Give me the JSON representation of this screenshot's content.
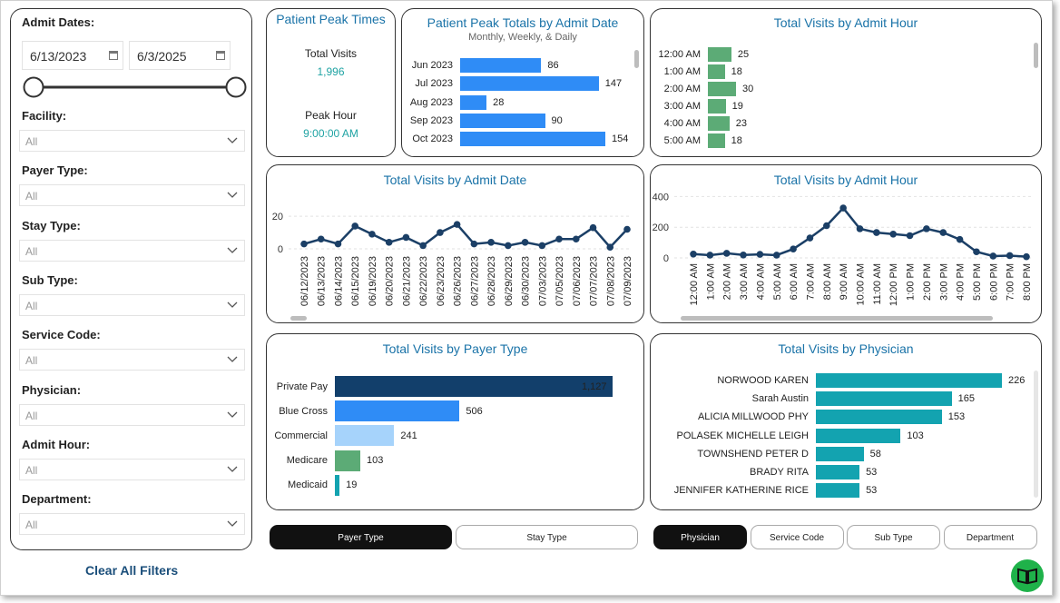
{
  "filters": {
    "admit_dates_label": "Admit Dates:",
    "start_date": "6/13/2023",
    "end_date": "6/3/2025",
    "items": [
      {
        "label": "Facility:",
        "value": "All"
      },
      {
        "label": "Payer Type:",
        "value": "All"
      },
      {
        "label": "Stay Type:",
        "value": "All"
      },
      {
        "label": "Sub Type:",
        "value": "All"
      },
      {
        "label": "Service Code:",
        "value": "All"
      },
      {
        "label": "Physician:",
        "value": "All"
      },
      {
        "label": "Admit Hour:",
        "value": "All"
      },
      {
        "label": "Department:",
        "value": "All"
      }
    ],
    "clear_label": "Clear All Filters"
  },
  "peak": {
    "title": "Patient Peak Times",
    "visits_label": "Total Visits",
    "visits_value": "1,996",
    "hour_label": "Peak Hour",
    "hour_value": "9:00:00 AM"
  },
  "peak_totals": {
    "title": "Patient Peak Totals by Admit Date",
    "subtitle": "Monthly, Weekly, & Daily",
    "rows": [
      {
        "label": "Jun 2023",
        "value": 86
      },
      {
        "label": "Jul 2023",
        "value": 147
      },
      {
        "label": "Aug 2023",
        "value": 28
      },
      {
        "label": "Sep 2023",
        "value": 90
      },
      {
        "label": "Oct 2023",
        "value": 154
      }
    ],
    "max": 154,
    "color": "#2f8cf6"
  },
  "visits_hour_bars": {
    "title": "Total Visits by Admit Hour",
    "rows": [
      {
        "label": "12:00 AM",
        "value": 25
      },
      {
        "label": "1:00 AM",
        "value": 18
      },
      {
        "label": "2:00 AM",
        "value": 30
      },
      {
        "label": "3:00 AM",
        "value": 19
      },
      {
        "label": "4:00 AM",
        "value": 23
      },
      {
        "label": "5:00 AM",
        "value": 18
      }
    ],
    "max": 30,
    "color": "#5cab76"
  },
  "visits_date_line": {
    "title": "Total Visits by Admit Date",
    "chart_data": {
      "type": "line",
      "x": [
        "06/12/2023",
        "06/13/2023",
        "06/14/2023",
        "06/15/2023",
        "06/19/2023",
        "06/20/2023",
        "06/21/2023",
        "06/22/2023",
        "06/23/2023",
        "06/26/2023",
        "06/27/2023",
        "06/28/2023",
        "06/29/2023",
        "06/30/2023",
        "07/03/2023",
        "07/05/2023",
        "07/06/2023",
        "07/07/2023",
        "07/08/2023",
        "07/09/2023"
      ],
      "y": [
        3,
        6,
        3,
        14,
        9,
        4,
        7,
        2,
        10,
        15,
        3,
        4,
        2,
        4,
        2,
        6,
        6,
        13,
        1,
        12
      ],
      "yticks": [
        0,
        20
      ],
      "ylim": [
        0,
        24
      ]
    }
  },
  "visits_hour_line": {
    "title": "Total Visits by Admit Hour",
    "chart_data": {
      "type": "line",
      "x": [
        "12:00 AM",
        "1:00 AM",
        "2:00 AM",
        "3:00 AM",
        "4:00 AM",
        "5:00 AM",
        "6:00 AM",
        "7:00 AM",
        "8:00 AM",
        "9:00 AM",
        "10:00 AM",
        "11:00 AM",
        "12:00 PM",
        "1:00 PM",
        "2:00 PM",
        "3:00 PM",
        "4:00 PM",
        "5:00 PM",
        "6:00 PM",
        "7:00 PM",
        "8:00 PM"
      ],
      "y": [
        25,
        18,
        30,
        19,
        23,
        18,
        58,
        130,
        210,
        325,
        190,
        165,
        155,
        145,
        190,
        165,
        120,
        40,
        12,
        15,
        8
      ],
      "yticks": [
        0,
        200,
        400
      ],
      "ylim": [
        0,
        420
      ]
    }
  },
  "payer": {
    "title": "Total Visits by Payer Type",
    "chart_data": {
      "type": "bar",
      "categories": [
        "Private Pay",
        "Blue Cross",
        "Commercial",
        "Medicare",
        "Medicaid"
      ],
      "values": [
        1127,
        506,
        241,
        103,
        19
      ],
      "value_labels": [
        "1,127",
        "506",
        "241",
        "103",
        "19"
      ],
      "colors": [
        "#123f6b",
        "#2f8cf6",
        "#a6d3fb",
        "#5cab76",
        "#13a3b0"
      ]
    }
  },
  "physician": {
    "title": "Total Visits by Physician",
    "chart_data": {
      "type": "bar",
      "categories": [
        "NORWOOD KAREN",
        "Sarah Austin",
        "ALICIA MILLWOOD PHY",
        "POLASEK MICHELLE LEIGH",
        "TOWNSHEND PETER D",
        "BRADY RITA",
        "JENNIFER KATHERINE RICE"
      ],
      "values": [
        226,
        165,
        153,
        103,
        58,
        53,
        53
      ],
      "color": "#13a3b0"
    }
  },
  "left_tabs": [
    {
      "label": "Payer Type",
      "active": true
    },
    {
      "label": "Stay Type",
      "active": false
    }
  ],
  "right_tabs": [
    {
      "label": "Physician",
      "active": true
    },
    {
      "label": "Service Code",
      "active": false
    },
    {
      "label": "Sub Type",
      "active": false
    },
    {
      "label": "Department",
      "active": false
    }
  ]
}
